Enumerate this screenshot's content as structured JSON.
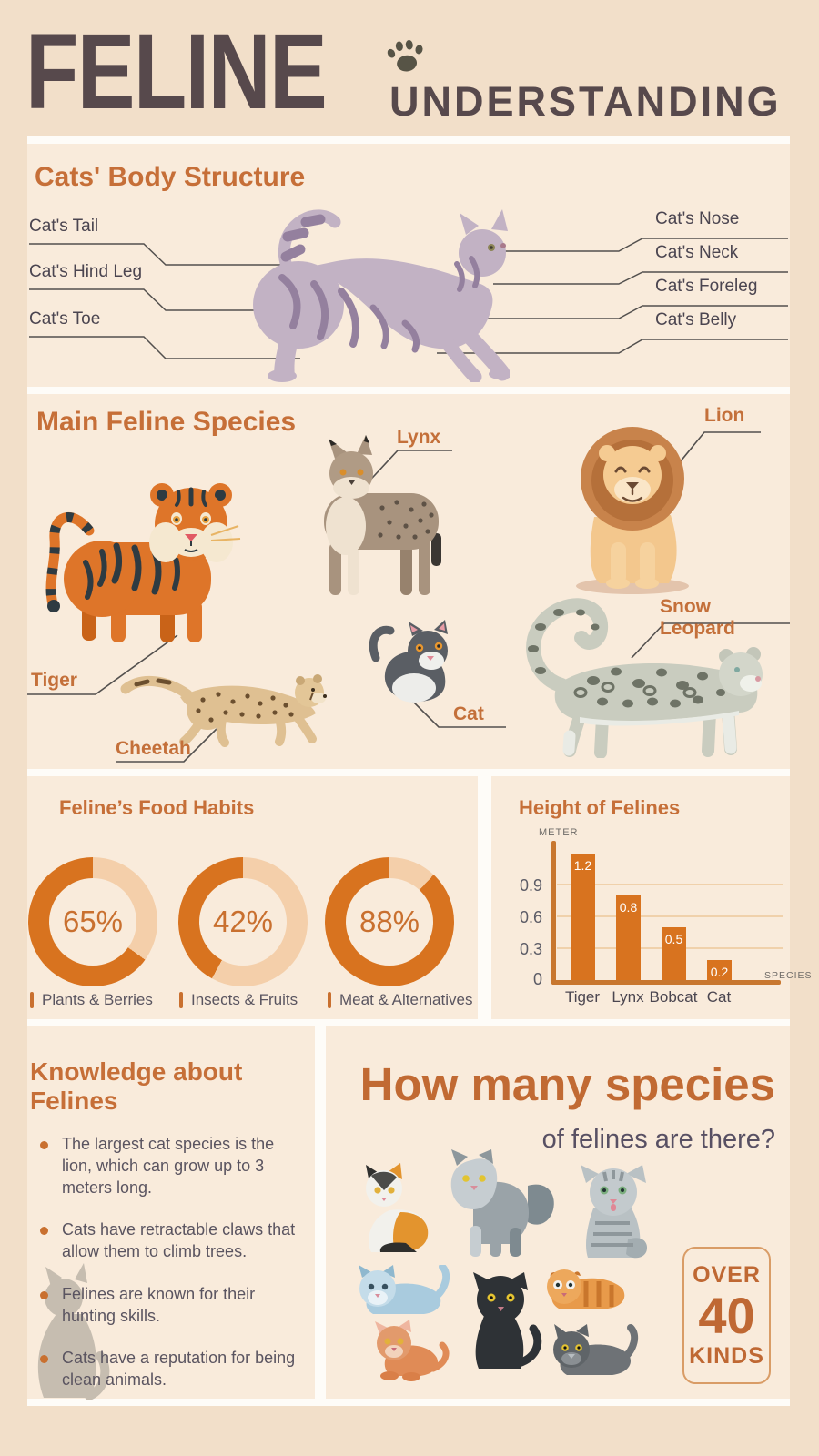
{
  "header": {
    "title": "FELINE",
    "subtitle": "UNDERSTANDING"
  },
  "icons": {
    "header": "paw-icon",
    "knowledge_watermark": "sitting-cat-silhouette-icon"
  },
  "body_structure": {
    "heading": "Cats' Body Structure",
    "left_labels": [
      "Cat's Tail",
      "Cat's Hind Leg",
      "Cat's Toe"
    ],
    "right_labels": [
      "Cat's Nose",
      "Cat's Neck",
      "Cat's Foreleg",
      "Cat's Belly"
    ]
  },
  "species": {
    "heading": "Main Feline Species",
    "labels": {
      "tiger": "Tiger",
      "lynx": "Lynx",
      "lion": "Lion",
      "cheetah": "Cheetah",
      "cat": "Cat",
      "snow_leopard": "Snow Leopard"
    }
  },
  "food_habits": {
    "heading": "Feline’s Food Habits",
    "items": [
      {
        "percent": 65,
        "display": "65%",
        "label": "Plants & Berries"
      },
      {
        "percent": 42,
        "display": "42%",
        "label": "Insects & Fruits"
      },
      {
        "percent": 88,
        "display": "88%",
        "label": "Meat & Alternatives"
      }
    ]
  },
  "chart_data": [
    {
      "type": "bar",
      "title": "Height of Felines",
      "categories": [
        "Tiger",
        "Lynx",
        "Bobcat",
        "Cat"
      ],
      "values": [
        1.2,
        0.8,
        0.5,
        0.2
      ],
      "value_labels": [
        "1.2",
        "0.8",
        "0.5",
        "0.2"
      ],
      "ylabel": "METER",
      "xlabel": "SPECIES",
      "yticks": [
        "0",
        "0.3",
        "0.6",
        "0.9"
      ],
      "ylim": [
        0,
        1.25
      ],
      "grid": true,
      "bar_color": "#D8731F",
      "legend_position": "none"
    },
    {
      "type": "pie",
      "subtype": "three-donut-gauges",
      "title": "Feline’s Food Habits",
      "slices": [
        {
          "label": "Plants & Berries",
          "value": 65
        },
        {
          "label": "Insects & Fruits",
          "value": 42
        },
        {
          "label": "Meat & Alternatives",
          "value": 88
        }
      ],
      "filled_color": "#D8731F",
      "remainder_color": "#F4CFAA"
    }
  ],
  "knowledge": {
    "heading": "Knowledge about Felines",
    "bullets": [
      "The largest cat species is the lion, which can grow up to 3 meters long.",
      "Cats have retractable claws that allow them to climb trees.",
      "Felines are known for their hunting skills.",
      "Cats have a reputation for being clean animals."
    ]
  },
  "species_count": {
    "title": "How many species",
    "subtitle": "of felines are there?",
    "badge": {
      "over": "OVER",
      "number": "40",
      "kinds": "KINDS"
    }
  },
  "colors": {
    "page_bg": "#F2DFC9",
    "panel_bg": "#F9EBDB",
    "gap_white": "#FEFCF8",
    "title_dark": "#57494C",
    "orange_heading": "#C66F38",
    "chart_orange": "#D8731F",
    "donut_light": "#F4CFAA",
    "body_text": "#5A5460",
    "line_color": "#53504E"
  }
}
